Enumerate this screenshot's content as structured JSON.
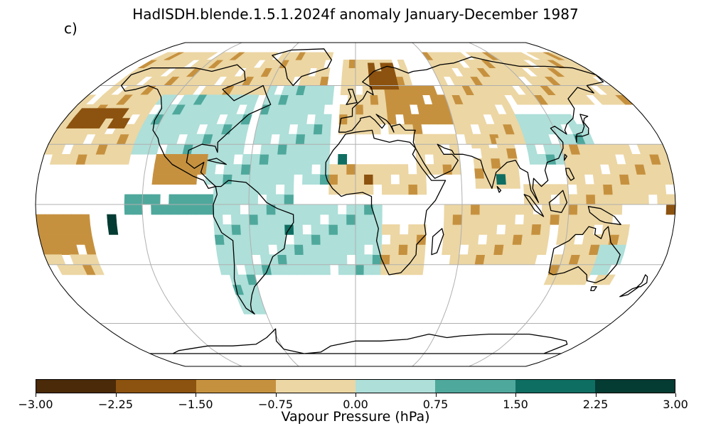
{
  "title": "HadISDH.blende.1.5.1.2024f anomaly January-December 1987",
  "panel_label": "c)",
  "projection": "Robinson",
  "colorbar": {
    "label": "Vapour Pressure (hPa)",
    "ticks": [
      "−3.00",
      "−2.25",
      "−1.50",
      "−0.75",
      "0.00",
      "0.75",
      "1.50",
      "2.25",
      "3.00"
    ],
    "colors": [
      "#4a2a08",
      "#8c520f",
      "#c6913f",
      "#ecd6a3",
      "#aedfd9",
      "#4fa89c",
      "#0f6e62",
      "#043b32"
    ],
    "range": [
      -3.0,
      3.0
    ]
  },
  "map_data": {
    "colors": [
      "#4a2a08",
      "#8c520f",
      "#c6913f",
      "#ecd6a3",
      "#ffffff",
      "#aedfd9",
      "#4fa89c",
      "#0f6e62",
      "#043b32"
    ],
    "grid_spacing_deg": 5,
    "graticule": {
      "lon_step": 60,
      "lat_step": 30
    },
    "regions": [
      {
        "name": "North America high latitudes",
        "lon": [
          -170,
          -60
        ],
        "lat": [
          55,
          80
        ],
        "cls": 3
      },
      {
        "name": "North America",
        "lon": [
          -130,
          -65
        ],
        "lat": [
          25,
          55
        ],
        "cls": 5
      },
      {
        "name": "Central America",
        "lon": [
          -115,
          -80
        ],
        "lat": [
          10,
          25
        ],
        "cls": 2
      },
      {
        "name": "Caribbean",
        "lon": [
          -85,
          -60
        ],
        "lat": [
          10,
          25
        ],
        "cls": 5
      },
      {
        "name": "North Pacific",
        "lon": [
          -180,
          -130
        ],
        "lat": [
          20,
          55
        ],
        "cls": 3
      },
      {
        "name": "North Pacific dry core",
        "lon": [
          -175,
          -140
        ],
        "lat": [
          38,
          48
        ],
        "cls": 1
      },
      {
        "name": "North Atlantic",
        "lon": [
          -60,
          -15
        ],
        "lat": [
          10,
          60
        ],
        "cls": 5
      },
      {
        "name": "Greenland coast",
        "lon": [
          -60,
          -20
        ],
        "lat": [
          60,
          80
        ],
        "cls": 3
      },
      {
        "name": "Europe",
        "lon": [
          -10,
          40
        ],
        "lat": [
          35,
          72
        ],
        "cls": 3
      },
      {
        "name": "Scandinavia dry",
        "lon": [
          10,
          30
        ],
        "lat": [
          58,
          70
        ],
        "cls": 1
      },
      {
        "name": "Eastern Europe",
        "lon": [
          20,
          60
        ],
        "lat": [
          40,
          60
        ],
        "cls": 2
      },
      {
        "name": "Siberia",
        "lon": [
          60,
          180
        ],
        "lat": [
          50,
          80
        ],
        "cls": 3
      },
      {
        "name": "Central Asia",
        "lon": [
          60,
          100
        ],
        "lat": [
          30,
          50
        ],
        "cls": 3
      },
      {
        "name": "East Asia",
        "lon": [
          100,
          140
        ],
        "lat": [
          20,
          45
        ],
        "cls": 5
      },
      {
        "name": "Arabia",
        "lon": [
          35,
          60
        ],
        "lat": [
          15,
          35
        ],
        "cls": 3
      },
      {
        "name": "India",
        "lon": [
          68,
          90
        ],
        "lat": [
          8,
          30
        ],
        "cls": 3
      },
      {
        "name": "West Pacific",
        "lon": [
          120,
          180
        ],
        "lat": [
          0,
          30
        ],
        "cls": 3
      },
      {
        "name": "Maritime Continent",
        "lon": [
          95,
          150
        ],
        "lat": [
          -10,
          10
        ],
        "cls": 3
      },
      {
        "name": "Australia",
        "lon": [
          115,
          155
        ],
        "lat": [
          -40,
          -12
        ],
        "cls": 3
      },
      {
        "name": "Australia east",
        "lon": [
          140,
          155
        ],
        "lat": [
          -35,
          -20
        ],
        "cls": 5
      },
      {
        "name": "South Pacific",
        "lon": [
          -180,
          -150
        ],
        "lat": [
          -25,
          -5
        ],
        "cls": 2
      },
      {
        "name": "South Pacific light",
        "lon": [
          -180,
          -150
        ],
        "lat": [
          -35,
          -25
        ],
        "cls": 3
      },
      {
        "name": "Tropical east Pacific",
        "lon": [
          -130,
          -80
        ],
        "lat": [
          -5,
          5
        ],
        "cls": 6
      },
      {
        "name": "South America",
        "lon": [
          -80,
          -35
        ],
        "lat": [
          -35,
          10
        ],
        "cls": 5
      },
      {
        "name": "Patagonia",
        "lon": [
          -75,
          -60
        ],
        "lat": [
          -55,
          -35
        ],
        "cls": 5
      },
      {
        "name": "South Atlantic",
        "lon": [
          -35,
          15
        ],
        "lat": [
          -35,
          0
        ],
        "cls": 5
      },
      {
        "name": "Africa Sahel",
        "lon": [
          -15,
          40
        ],
        "lat": [
          5,
          20
        ],
        "cls": 3
      },
      {
        "name": "Southern Africa",
        "lon": [
          15,
          40
        ],
        "lat": [
          -35,
          -10
        ],
        "cls": 3
      },
      {
        "name": "Indian Ocean",
        "lon": [
          50,
          110
        ],
        "lat": [
          -30,
          0
        ],
        "cls": 3
      }
    ],
    "points": [
      {
        "lon": -10,
        "lat": 22,
        "cls": 7
      },
      {
        "lon": 5,
        "lat": 12,
        "cls": 1
      },
      {
        "lon": 82,
        "lat": 12,
        "cls": 7
      },
      {
        "lon": -140,
        "lat": -10,
        "cls": 8
      },
      {
        "lon": -140,
        "lat": -15,
        "cls": 8
      },
      {
        "lon": -40,
        "lat": -12,
        "cls": 7
      },
      {
        "lon": 175,
        "lat": -2,
        "cls": 1
      },
      {
        "lon": 150,
        "lat": 12,
        "cls": 2
      },
      {
        "lon": 25,
        "lat": 62,
        "cls": 1
      }
    ]
  }
}
